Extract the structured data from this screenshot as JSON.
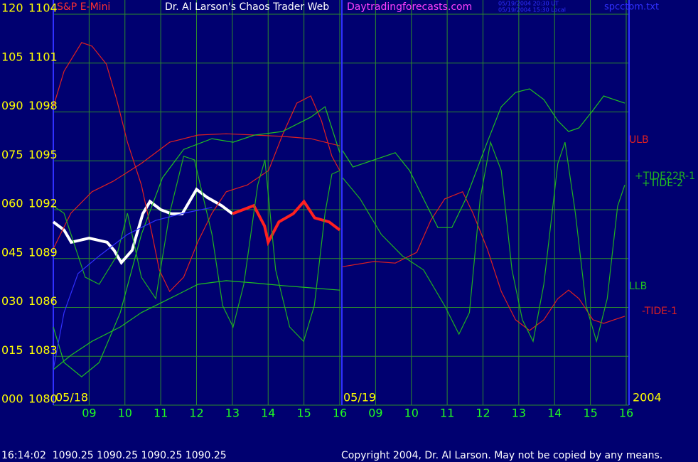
{
  "chart_data": {
    "type": "line",
    "title": "Dr. Al Larson's Chaos Trader Web",
    "instrument": "S&P E-Mini",
    "site": "Daytradingforecasts.com",
    "timestamps": [
      "05/19/2004 20:30 UT",
      "05/19/2004 15:30 Local"
    ],
    "file": "spcctom.txt",
    "date_labels": [
      "05/18",
      "05/19",
      "2004"
    ],
    "status": "16:14:02  1090.25 1090.25 1090.25 1090.25",
    "copyright": "Copyright 2004, Dr. Al Larson. May not be copied by any means.",
    "grid": true,
    "xlim": [
      0,
      16
    ],
    "xticks": [
      {
        "value": 1,
        "label": "09"
      },
      {
        "value": 2,
        "label": "10"
      },
      {
        "value": 3,
        "label": "11"
      },
      {
        "value": 4,
        "label": "12"
      },
      {
        "value": 5,
        "label": "13"
      },
      {
        "value": 6,
        "label": "14"
      },
      {
        "value": 7,
        "label": "15"
      },
      {
        "value": 8,
        "label": "16"
      },
      {
        "value": 9,
        "label": "09"
      },
      {
        "value": 10,
        "label": "10"
      },
      {
        "value": 11,
        "label": "11"
      },
      {
        "value": 12,
        "label": "12"
      },
      {
        "value": 13,
        "label": "13"
      },
      {
        "value": 14,
        "label": "14"
      },
      {
        "value": 15,
        "label": "15"
      },
      {
        "value": 16,
        "label": "16"
      }
    ],
    "ylim": [
      0,
      120
    ],
    "yticks": [
      {
        "value": 0,
        "label": "000"
      },
      {
        "value": 15,
        "label": "015"
      },
      {
        "value": 30,
        "label": "030"
      },
      {
        "value": 45,
        "label": "045"
      },
      {
        "value": 60,
        "label": "060"
      },
      {
        "value": 75,
        "label": "075"
      },
      {
        "value": 90,
        "label": "090"
      },
      {
        "value": 105,
        "label": "105"
      },
      120
    ],
    "y2lim": [
      1080,
      1104
    ],
    "y2ticks": [
      1080,
      1083,
      1086,
      1089,
      1092,
      1095,
      1098,
      1101,
      1104
    ],
    "series": [
      {
        "color": "#ffffff",
        "axis": "y2",
        "x": [
          0,
          0.3,
          0.5,
          1,
          1.5,
          1.7,
          1.9,
          2.2,
          2.5,
          2.7,
          3,
          3.3,
          3.6,
          4,
          4.3,
          4.7,
          5
        ],
        "values": [
          1091.25,
          1090.75,
          1090,
          1090.25,
          1090,
          1089.5,
          1088.75,
          1089.5,
          1091.75,
          1092.5,
          1092,
          1091.75,
          1091.75,
          1093.25,
          1092.75,
          1092.25,
          1091.75
        ]
      },
      {
        "color": "#ff2020",
        "axis": "y2",
        "x": [
          5,
          5.3,
          5.6,
          5.9,
          6,
          6.3,
          6.7,
          7,
          7.3,
          7.7,
          8
        ],
        "values": [
          1091.75,
          1092,
          1092.25,
          1091,
          1090,
          1091.25,
          1091.75,
          1092.5,
          1091.5,
          1091.25,
          1090.75
        ]
      },
      {
        "name": "ULB",
        "color": "#e02020",
        "x": [
          0,
          0.49,
          1.08,
          1.67,
          2.46,
          3.25,
          4.04,
          4.83,
          5.62,
          6.4,
          7.19,
          8
        ],
        "values": [
          48.0,
          58.9,
          65.5,
          68.7,
          74.2,
          80.7,
          82.9,
          83.3,
          82.9,
          82.5,
          81.8,
          79.6
        ]
      },
      {
        "name": "-TIDE-1",
        "color": "#e02020",
        "x": [
          0,
          0.3,
          0.79,
          1.08,
          1.48,
          1.77,
          2.07,
          2.46,
          2.76,
          2.96,
          3.25,
          3.64,
          4.04,
          4.43,
          4.83,
          5.42,
          6.01,
          6.4,
          6.8,
          7.19,
          7.49,
          7.78,
          8,
          8.04,
          8.08,
          8.96,
          9.55,
          10.15,
          10.54,
          10.93,
          11.43,
          11.72,
          12.12,
          12.51,
          12.91,
          13.3,
          13.7,
          14.09,
          14.39,
          14.68,
          15.07,
          15.37,
          15.66,
          15.96
        ],
        "values": [
          91.6,
          102.5,
          111.3,
          110.2,
          104.7,
          93.8,
          80.7,
          67.6,
          52.4,
          41.5,
          34.9,
          39.3,
          50.2,
          58.9,
          65.5,
          67.6,
          72.0,
          82.9,
          92.7,
          94.9,
          87.3,
          76.4,
          72.0,
          null,
          42.5,
          44.1,
          43.6,
          46.9,
          56.7,
          63.3,
          65.5,
          58.9,
          48.0,
          34.9,
          26.2,
          22.9,
          26.2,
          32.7,
          35.3,
          32.7,
          26.2,
          25.1,
          26.2,
          27.3
        ]
      },
      {
        "name": "LLB",
        "color": "#20c020",
        "x": [
          0,
          0.49,
          1.08,
          1.87,
          2.46,
          3.25,
          4.04,
          4.83,
          5.62,
          6.4,
          7.19,
          8
        ],
        "values": [
          10.9,
          15.3,
          19.6,
          24.0,
          28.4,
          32.7,
          37.1,
          38.2,
          37.5,
          36.7,
          36.0,
          35.3
        ]
      },
      {
        "name": "+TIDE-2",
        "color": "#20c020",
        "x": [
          0,
          0.3,
          0.79,
          1.28,
          1.87,
          2.46,
          3.05,
          3.64,
          4.43,
          5.02,
          5.62,
          6.4,
          7.19,
          7.59,
          8,
          8.04,
          8.08,
          8.37,
          8.96,
          9.55,
          9.95,
          10.34,
          10.74,
          11.13,
          11.52,
          12.12,
          12.51,
          12.91,
          13.3,
          13.7,
          14.09,
          14.39,
          14.68,
          15.07,
          15.37,
          15.66,
          15.96
        ],
        "values": [
          24.0,
          13.1,
          8.7,
          13.1,
          28.4,
          52.4,
          69.8,
          78.5,
          81.8,
          80.7,
          82.9,
          84.0,
          88.4,
          91.6,
          77.5,
          null,
          78.1,
          73.1,
          75.3,
          77.5,
          72.0,
          63.3,
          54.5,
          54.5,
          63.3,
          80.7,
          91.6,
          96.0,
          97.1,
          93.8,
          87.3,
          84.0,
          85.1,
          90.5,
          94.9,
          93.8,
          92.7
        ]
      },
      {
        "name": "+TIDE22R-1",
        "color": "#20b020",
        "x": [
          0,
          0.3,
          0.89,
          1.28,
          1.77,
          2.07,
          2.46,
          2.86,
          3.25,
          3.64,
          3.94,
          4.43,
          4.73,
          5.02,
          5.32,
          5.71,
          5.91,
          6.21,
          6.6,
          6.99,
          7.29,
          7.59,
          7.78,
          8,
          8.04,
          8.08,
          8.57,
          9.16,
          9.75,
          10.34,
          10.93,
          11.33,
          11.62,
          11.92,
          12.21,
          12.51,
          12.81,
          13.1,
          13.4,
          13.7,
          14.09,
          14.29,
          14.58,
          14.88,
          15.17,
          15.47,
          15.76,
          15.96
        ],
        "values": [
          61.1,
          58.9,
          39.3,
          37.1,
          45.8,
          58.9,
          39.3,
          32.7,
          58.9,
          76.4,
          75.3,
          52.4,
          30.5,
          24.0,
          37.1,
          67.6,
          75.3,
          41.5,
          24.0,
          19.6,
          30.5,
          58.9,
          70.9,
          72.0,
          null,
          69.8,
          63.3,
          52.4,
          45.8,
          41.5,
          30.5,
          21.8,
          28.4,
          63.3,
          80.7,
          72.0,
          41.5,
          26.2,
          19.6,
          37.1,
          74.2,
          80.7,
          58.9,
          30.5,
          19.6,
          32.7,
          61.1,
          67.6
        ]
      },
      {
        "color": "#3030ff",
        "x": [
          0,
          0.3,
          0.69,
          1.28,
          2.07,
          2.86,
          3.64,
          4.43
        ],
        "values": [
          10.9,
          28.4,
          40.4,
          45.8,
          52.4,
          56.7,
          58.9,
          60.7
        ]
      }
    ]
  }
}
